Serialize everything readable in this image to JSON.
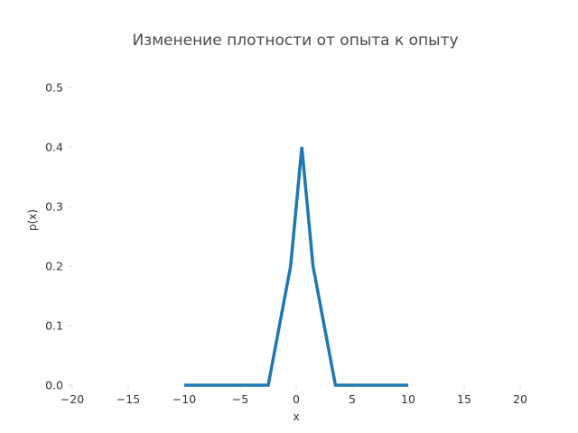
{
  "chart_data": {
    "type": "line",
    "title": "Изменение плотности от опыта к опыту",
    "xlabel": "x",
    "ylabel": "p(x)",
    "xlim": [
      -20,
      20
    ],
    "ylim": [
      0,
      0.55
    ],
    "grid": false,
    "x_ticks": [
      -20,
      -15,
      -10,
      -5,
      0,
      5,
      10,
      15,
      20
    ],
    "x_tick_labels": [
      "−20",
      "−15",
      "−10",
      "−5",
      "0",
      "5",
      "10",
      "15",
      "20"
    ],
    "y_ticks": [
      0.0,
      0.1,
      0.2,
      0.3,
      0.4,
      0.5
    ],
    "y_tick_labels": [
      "0.0",
      "0.1",
      "0.2",
      "0.3",
      "0.4",
      "0.5"
    ],
    "series": [
      {
        "color": "#1f77b4",
        "x": [
          -10,
          -2.5,
          -0.5,
          0.5,
          1.5,
          3.5,
          10
        ],
        "y": [
          0.0,
          0.0,
          0.2,
          0.4,
          0.2,
          0.0,
          0.0
        ]
      }
    ]
  }
}
